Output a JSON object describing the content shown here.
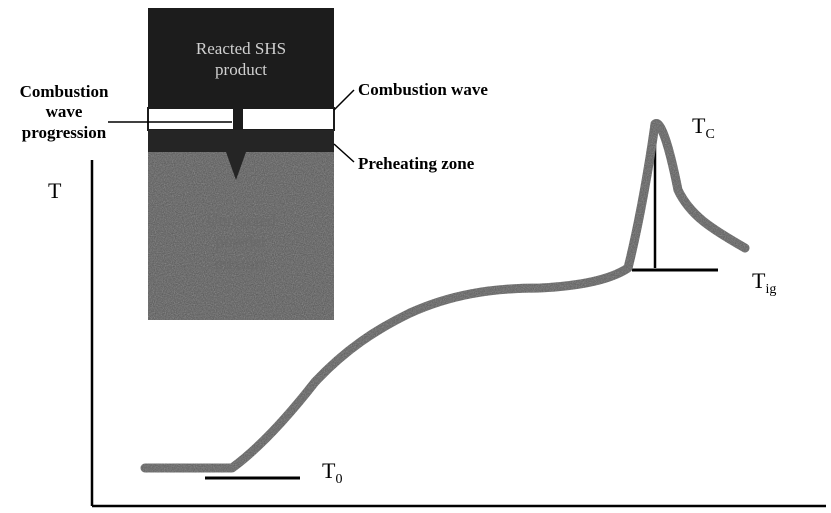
{
  "diagram": {
    "reacted_block": {
      "line1": "Reacted SHS",
      "line2": "product"
    },
    "unreacted_block": {
      "line1": "Unreacted",
      "line2": "powder",
      "line3": "mixture"
    },
    "labels": {
      "progression": {
        "line1": "Combustion",
        "line2": "wave",
        "line3": "progression"
      },
      "combustion_wave": "Combustion wave",
      "preheating_zone": "Preheating zone"
    },
    "axis": {
      "y_symbol": "T"
    },
    "temperature_markers": {
      "t0": {
        "base": "T",
        "sub": "0"
      },
      "tig": {
        "base": "T",
        "sub": "ig"
      },
      "tc": {
        "base": "T",
        "sub": "C"
      }
    },
    "colors": {
      "reacted": "#1c1c1c",
      "unreacted": "#555555",
      "curve": "#5a5a5a",
      "axis": "#000000"
    }
  }
}
